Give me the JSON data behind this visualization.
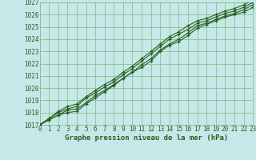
{
  "title": "Graphe pression niveau de la mer (hPa)",
  "bg_color": "#c5e8e8",
  "grid_color": "#90c090",
  "line_color": "#2a6020",
  "marker_color": "#2a6020",
  "tick_color": "#2a6020",
  "ylim": [
    1017,
    1027
  ],
  "xlim": [
    0,
    23
  ],
  "yticks": [
    1017,
    1018,
    1019,
    1020,
    1021,
    1022,
    1023,
    1024,
    1025,
    1026,
    1027
  ],
  "xticks": [
    0,
    1,
    2,
    3,
    4,
    5,
    6,
    7,
    8,
    9,
    10,
    11,
    12,
    13,
    14,
    15,
    16,
    17,
    18,
    19,
    20,
    21,
    22,
    23
  ],
  "series": [
    [
      1017.0,
      1017.4,
      1017.8,
      1018.2,
      1018.3,
      1018.8,
      1019.4,
      1019.8,
      1020.3,
      1020.8,
      1021.3,
      1021.7,
      1022.2,
      1023.0,
      1023.5,
      1023.8,
      1024.3,
      1024.9,
      1025.2,
      1025.5,
      1025.8,
      1026.0,
      1026.2,
      1026.6
    ],
    [
      1017.0,
      1017.5,
      1018.0,
      1018.3,
      1018.5,
      1019.2,
      1019.6,
      1020.1,
      1020.5,
      1021.1,
      1021.6,
      1022.2,
      1022.8,
      1023.4,
      1024.0,
      1024.4,
      1024.8,
      1025.3,
      1025.5,
      1025.8,
      1026.1,
      1026.3,
      1026.6,
      1027.0
    ],
    [
      1017.0,
      1017.5,
      1018.1,
      1018.5,
      1018.7,
      1019.3,
      1019.8,
      1020.3,
      1020.7,
      1021.3,
      1021.8,
      1022.4,
      1023.0,
      1023.6,
      1024.2,
      1024.6,
      1025.1,
      1025.5,
      1025.7,
      1026.0,
      1026.3,
      1026.5,
      1026.8,
      1027.2
    ],
    [
      1017.0,
      1017.4,
      1017.8,
      1018.0,
      1018.1,
      1018.7,
      1019.2,
      1019.7,
      1020.2,
      1020.8,
      1021.3,
      1021.9,
      1022.4,
      1023.1,
      1023.6,
      1024.0,
      1024.5,
      1025.1,
      1025.3,
      1025.6,
      1025.9,
      1026.1,
      1026.4,
      1026.8
    ]
  ]
}
